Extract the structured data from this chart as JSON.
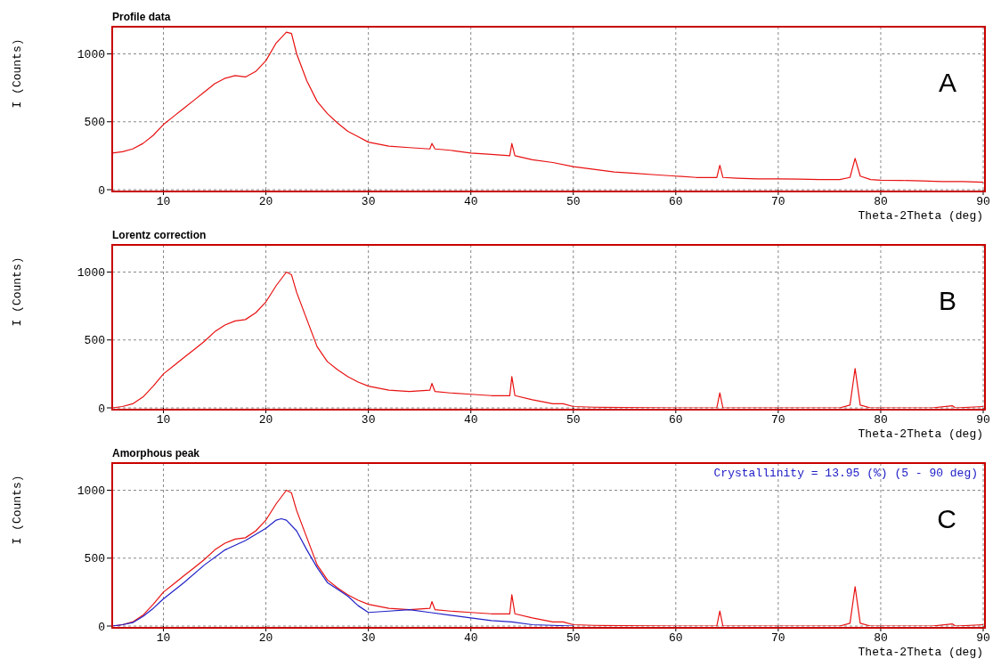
{
  "chart_data": [
    {
      "type": "line",
      "title": "Profile data",
      "xlabel": "Theta-2Theta (deg)",
      "ylabel": "I (Counts)",
      "xlim": [
        5,
        90
      ],
      "xticks": [
        10,
        20,
        30,
        40,
        50,
        60,
        70,
        80,
        90
      ],
      "ylim": [
        0,
        1200
      ],
      "yticks": [
        0,
        500,
        1000
      ],
      "grid": true,
      "annotations": [
        "A"
      ],
      "series": [
        {
          "color": "#e81010",
          "x": [
            5,
            6,
            7,
            8,
            9,
            10,
            11,
            12,
            13,
            14,
            15,
            16,
            17,
            18,
            19,
            20,
            21,
            22,
            22.5,
            23,
            24,
            25,
            26,
            27,
            28,
            29,
            30,
            32,
            34,
            36,
            36.2,
            36.5,
            38,
            40,
            42,
            43.8,
            44,
            44.3,
            46,
            48,
            50,
            52,
            54,
            56,
            58,
            60,
            62,
            64,
            64.3,
            64.6,
            66,
            68,
            70,
            72,
            74,
            76,
            77,
            77.5,
            78,
            79,
            80,
            82,
            84,
            86,
            88,
            90
          ],
          "values": [
            270,
            280,
            300,
            340,
            400,
            480,
            540,
            600,
            660,
            720,
            780,
            820,
            840,
            830,
            870,
            950,
            1080,
            1160,
            1150,
            1000,
            800,
            650,
            560,
            490,
            430,
            390,
            350,
            320,
            310,
            300,
            340,
            300,
            290,
            270,
            260,
            250,
            340,
            250,
            220,
            200,
            170,
            150,
            130,
            120,
            110,
            100,
            90,
            90,
            180,
            90,
            85,
            80,
            80,
            78,
            75,
            75,
            90,
            230,
            100,
            75,
            70,
            68,
            65,
            60,
            60,
            55
          ]
        }
      ]
    },
    {
      "type": "line",
      "title": "Lorentz correction",
      "xlabel": "Theta-2Theta (deg)",
      "ylabel": "I (Counts)",
      "xlim": [
        5,
        90
      ],
      "xticks": [
        10,
        20,
        30,
        40,
        50,
        60,
        70,
        80,
        90
      ],
      "ylim": [
        0,
        1200
      ],
      "yticks": [
        0,
        500,
        1000
      ],
      "grid": true,
      "annotations": [
        "B"
      ],
      "series": [
        {
          "color": "#e81010",
          "x": [
            5,
            6,
            7,
            8,
            9,
            10,
            11,
            12,
            13,
            14,
            15,
            16,
            17,
            18,
            19,
            20,
            21,
            22,
            22.5,
            23,
            24,
            25,
            26,
            27,
            28,
            29,
            30,
            32,
            34,
            36,
            36.2,
            36.5,
            38,
            40,
            42,
            43.8,
            44,
            44.3,
            46,
            48,
            49,
            50,
            52,
            55,
            60,
            64,
            64.3,
            64.6,
            70,
            76,
            77,
            77.5,
            78,
            79,
            85,
            87,
            87.3,
            90
          ],
          "values": [
            0,
            10,
            30,
            80,
            160,
            250,
            310,
            370,
            430,
            490,
            560,
            610,
            640,
            650,
            700,
            780,
            900,
            1000,
            980,
            850,
            650,
            450,
            340,
            280,
            230,
            190,
            160,
            130,
            120,
            130,
            180,
            120,
            110,
            100,
            90,
            90,
            230,
            90,
            60,
            30,
            30,
            10,
            5,
            2,
            0,
            0,
            110,
            0,
            0,
            0,
            20,
            290,
            20,
            0,
            0,
            15,
            0,
            10
          ]
        }
      ]
    },
    {
      "type": "line",
      "title": "Amorphous peak",
      "xlabel": "Theta-2Theta (deg)",
      "ylabel": "I (Counts)",
      "xlim": [
        5,
        90
      ],
      "xticks": [
        10,
        20,
        30,
        40,
        50,
        60,
        70,
        80,
        90
      ],
      "ylim": [
        0,
        1200
      ],
      "yticks": [
        0,
        500,
        1000
      ],
      "grid": true,
      "annotations": [
        "Crystallinity = 13.95 (%) (5 - 90 deg)",
        "C"
      ],
      "series": [
        {
          "color": "#e81010",
          "x": [
            5,
            6,
            7,
            8,
            9,
            10,
            11,
            12,
            13,
            14,
            15,
            16,
            17,
            18,
            19,
            20,
            21,
            22,
            22.5,
            23,
            24,
            25,
            26,
            27,
            28,
            29,
            30,
            32,
            34,
            36,
            36.2,
            36.5,
            38,
            40,
            42,
            43.8,
            44,
            44.3,
            46,
            48,
            49,
            50,
            52,
            55,
            60,
            64,
            64.3,
            64.6,
            70,
            76,
            77,
            77.5,
            78,
            79,
            85,
            87,
            87.3,
            90
          ],
          "values": [
            0,
            10,
            30,
            80,
            160,
            250,
            310,
            370,
            430,
            490,
            560,
            610,
            640,
            650,
            700,
            780,
            900,
            1000,
            980,
            850,
            650,
            450,
            340,
            280,
            230,
            190,
            160,
            130,
            120,
            130,
            180,
            120,
            110,
            100,
            90,
            90,
            230,
            90,
            60,
            30,
            30,
            10,
            5,
            2,
            0,
            0,
            110,
            0,
            0,
            0,
            20,
            290,
            20,
            0,
            0,
            15,
            0,
            10
          ]
        },
        {
          "color": "#2020c8",
          "x": [
            5,
            6,
            7,
            8,
            9,
            10,
            12,
            14,
            16,
            18,
            20,
            21,
            21.5,
            22,
            23,
            24,
            25,
            26,
            27,
            28,
            29,
            30,
            32,
            34,
            36,
            38,
            40,
            42,
            44,
            46,
            48,
            50
          ],
          "values": [
            0,
            10,
            25,
            70,
            130,
            200,
            320,
            450,
            560,
            630,
            720,
            780,
            790,
            780,
            700,
            560,
            430,
            320,
            270,
            220,
            150,
            100,
            110,
            120,
            100,
            80,
            60,
            40,
            30,
            10,
            5,
            0
          ]
        }
      ]
    }
  ]
}
